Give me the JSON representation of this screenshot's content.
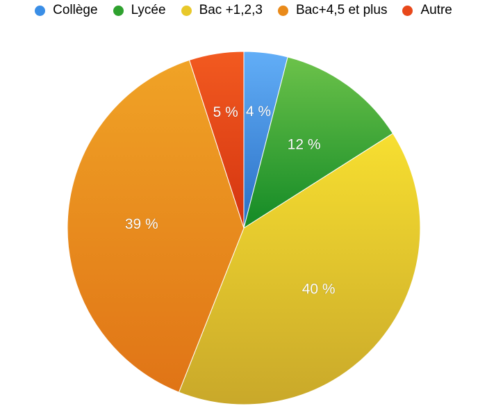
{
  "chart_data": {
    "type": "pie",
    "title": "",
    "legend_position": "top",
    "categories": [
      "Collège",
      "Lycée",
      "Bac +1,2,3",
      "Bac+4,5 et plus",
      "Autre"
    ],
    "values": [
      4,
      12,
      40,
      39,
      5
    ],
    "labels": [
      "4 %",
      "12 %",
      "40 %",
      "39 %",
      "5 %"
    ],
    "colors": [
      "#3a8ee6",
      "#2ea12e",
      "#e8c82a",
      "#e98a1a",
      "#e8481a"
    ],
    "colors_light": [
      "#62aef7",
      "#6cc24a",
      "#f7df30",
      "#f0a326",
      "#f25a20"
    ],
    "colors_dark": [
      "#2a6fc4",
      "#138a26",
      "#c9a82a",
      "#e07416",
      "#d43410"
    ]
  }
}
